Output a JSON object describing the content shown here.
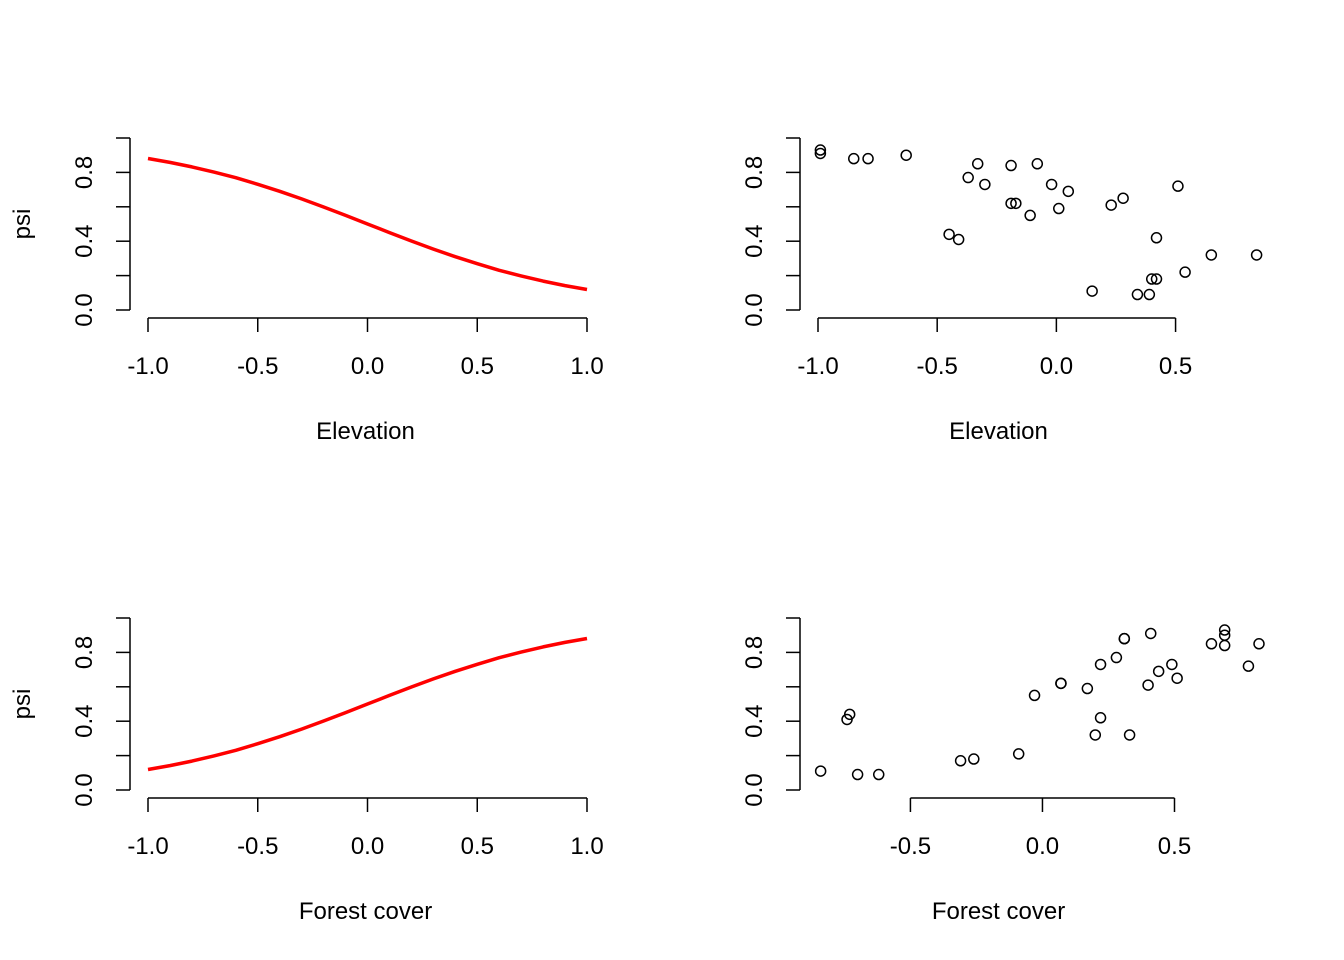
{
  "chart_data": [
    {
      "id": "top-left",
      "type": "line",
      "xlabel": "Elevation",
      "ylabel": "psi",
      "xlim": [
        -1.0,
        1.0
      ],
      "ylim": [
        0.0,
        1.0
      ],
      "x_ticks": [
        -1.0,
        -0.5,
        0.0,
        0.5,
        1.0
      ],
      "x_tick_labels": [
        "-1.0",
        "-0.5",
        "0.0",
        "0.5",
        "1.0"
      ],
      "y_ticks": [
        0.0,
        0.2,
        0.4,
        0.6,
        0.8,
        1.0
      ],
      "y_tick_labels": [
        "0.0",
        "",
        "0.4",
        "",
        "0.8",
        ""
      ],
      "series": [
        {
          "color": "#ff0000",
          "x": [
            -1.0,
            -0.9,
            -0.8,
            -0.7,
            -0.6,
            -0.5,
            -0.4,
            -0.3,
            -0.2,
            -0.1,
            0.0,
            0.1,
            0.2,
            0.3,
            0.4,
            0.5,
            0.6,
            0.7,
            0.8,
            0.9,
            1.0
          ],
          "y": [
            0.881,
            0.858,
            0.832,
            0.802,
            0.769,
            0.731,
            0.69,
            0.646,
            0.599,
            0.55,
            0.5,
            0.45,
            0.401,
            0.354,
            0.31,
            0.269,
            0.231,
            0.198,
            0.168,
            0.142,
            0.119
          ]
        }
      ]
    },
    {
      "id": "top-right",
      "type": "scatter",
      "xlabel": "Elevation",
      "ylabel": "",
      "xlim": [
        -1.0,
        0.85
      ],
      "ylim": [
        0.0,
        1.0
      ],
      "x_ticks": [
        -1.0,
        -0.5,
        0.0,
        0.5
      ],
      "x_tick_labels": [
        "-1.0",
        "-0.5",
        "0.0",
        "0.5"
      ],
      "y_ticks": [
        0.0,
        0.2,
        0.4,
        0.6,
        0.8,
        1.0
      ],
      "y_tick_labels": [
        "0.0",
        "",
        "0.4",
        "",
        "0.8",
        ""
      ],
      "series": [
        {
          "x": [
            -0.99,
            -0.99,
            -0.85,
            -0.79,
            -0.63,
            -0.45,
            -0.41,
            -0.37,
            -0.33,
            -0.3,
            -0.19,
            -0.19,
            -0.17,
            -0.11,
            -0.08,
            -0.02,
            0.01,
            0.05,
            0.15,
            0.23,
            0.28,
            0.34,
            0.39,
            0.4,
            0.42,
            0.42,
            0.51,
            0.54,
            0.65,
            0.84
          ],
          "y": [
            0.93,
            0.91,
            0.88,
            0.88,
            0.9,
            0.44,
            0.41,
            0.77,
            0.85,
            0.73,
            0.84,
            0.62,
            0.62,
            0.55,
            0.85,
            0.73,
            0.59,
            0.69,
            0.11,
            0.61,
            0.65,
            0.09,
            0.09,
            0.18,
            0.18,
            0.42,
            0.72,
            0.22,
            0.32,
            0.32
          ]
        }
      ]
    },
    {
      "id": "bottom-left",
      "type": "line",
      "xlabel": "Forest cover",
      "ylabel": "psi",
      "xlim": [
        -1.0,
        1.0
      ],
      "ylim": [
        0.0,
        1.0
      ],
      "x_ticks": [
        -1.0,
        -0.5,
        0.0,
        0.5,
        1.0
      ],
      "x_tick_labels": [
        "-1.0",
        "-0.5",
        "0.0",
        "0.5",
        "1.0"
      ],
      "y_ticks": [
        0.0,
        0.2,
        0.4,
        0.6,
        0.8,
        1.0
      ],
      "y_tick_labels": [
        "0.0",
        "",
        "0.4",
        "",
        "0.8",
        ""
      ],
      "series": [
        {
          "color": "#ff0000",
          "x": [
            -1.0,
            -0.9,
            -0.8,
            -0.7,
            -0.6,
            -0.5,
            -0.4,
            -0.3,
            -0.2,
            -0.1,
            0.0,
            0.1,
            0.2,
            0.3,
            0.4,
            0.5,
            0.6,
            0.7,
            0.8,
            0.9,
            1.0
          ],
          "y": [
            0.119,
            0.142,
            0.168,
            0.198,
            0.231,
            0.269,
            0.31,
            0.354,
            0.401,
            0.45,
            0.5,
            0.55,
            0.599,
            0.646,
            0.69,
            0.731,
            0.769,
            0.802,
            0.832,
            0.858,
            0.881
          ]
        }
      ]
    },
    {
      "id": "bottom-right",
      "type": "scatter",
      "xlabel": "Forest cover",
      "ylabel": "",
      "xlim": [
        -0.85,
        0.82
      ],
      "ylim": [
        0.0,
        1.0
      ],
      "x_ticks": [
        -0.5,
        0.0,
        0.5
      ],
      "x_tick_labels": [
        "-0.5",
        "0.0",
        "0.5"
      ],
      "y_ticks": [
        0.0,
        0.2,
        0.4,
        0.6,
        0.8,
        1.0
      ],
      "y_tick_labels": [
        "0.0",
        "",
        "0.4",
        "",
        "0.8",
        ""
      ],
      "series": [
        {
          "x": [
            -0.84,
            -0.74,
            -0.73,
            -0.7,
            -0.62,
            -0.31,
            -0.26,
            -0.09,
            -0.03,
            0.07,
            0.07,
            0.17,
            0.2,
            0.22,
            0.22,
            0.28,
            0.31,
            0.31,
            0.33,
            0.4,
            0.41,
            0.44,
            0.49,
            0.51,
            0.64,
            0.69,
            0.69,
            0.69,
            0.78,
            0.82
          ],
          "y": [
            0.11,
            0.41,
            0.44,
            0.09,
            0.09,
            0.17,
            0.18,
            0.21,
            0.55,
            0.62,
            0.62,
            0.59,
            0.32,
            0.42,
            0.73,
            0.77,
            0.88,
            0.88,
            0.32,
            0.61,
            0.91,
            0.69,
            0.73,
            0.65,
            0.85,
            0.93,
            0.9,
            0.84,
            0.72,
            0.85
          ]
        }
      ]
    }
  ]
}
